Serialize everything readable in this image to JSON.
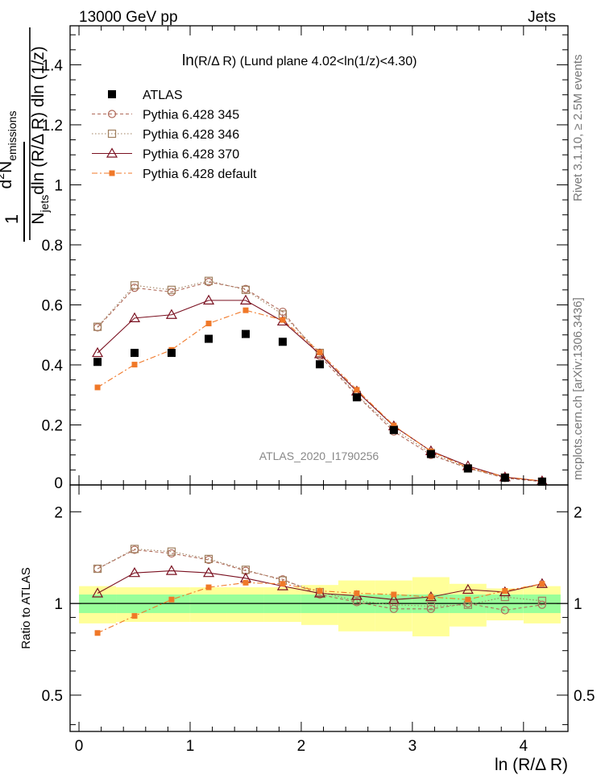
{
  "header": {
    "left": "13000 GeV pp",
    "right": "Jets"
  },
  "side_text": {
    "rivet": "Rivet 3.1.10, ≥ 2.5M events",
    "mcplots": "mcplots.cern.ch [arXiv:1306.3436]"
  },
  "colors": {
    "atlas": "#000000",
    "p345": "#b06a5a",
    "p346": "#a08060",
    "p370": "#7a1020",
    "pdefault": "#f07828",
    "band_inner": "#99ff99",
    "band_outer": "#ffff99"
  },
  "chart_data": {
    "type": "line",
    "title_main": "ln",
    "title_detail": "(R/Δ R) (Lund plane 4.02<ln(1/z)<4.30)",
    "analysis_label": "ATLAS_2020_I1790256",
    "xlabel": "ln (R/Δ R)",
    "ylabel": "1/N_jets dln (R/Δ R) dln (1/z) · d² N_emissions",
    "ylabel_parts": {
      "one": "1",
      "d2": "d",
      "two": "2",
      "N": "N",
      "emissions": "emissions",
      "Njets_N": "N",
      "jets": "jets",
      "denominator_rest": "dln (R/Δ R) dln (1/z)"
    },
    "ratio_ylabel": "Ratio to ATLAS",
    "x": [
      0.167,
      0.5,
      0.833,
      1.167,
      1.5,
      1.833,
      2.167,
      2.5,
      2.833,
      3.167,
      3.5,
      3.833,
      4.167
    ],
    "xlim": [
      -0.08,
      4.4
    ],
    "ylim": [
      0,
      1.53
    ],
    "ratio_ylim": [
      0.38,
      2.45
    ],
    "xticks": [
      "0",
      "1",
      "2",
      "3",
      "4"
    ],
    "xtick_values": [
      0,
      1,
      2,
      3,
      4
    ],
    "yticks": [
      "0.2",
      "0.4",
      "0.6",
      "0.8",
      "1",
      "1.2",
      "1.4"
    ],
    "ytick_values": [
      0.2,
      0.4,
      0.6,
      0.8,
      1.0,
      1.2,
      1.4
    ],
    "ytick_zero": "0",
    "ratio_yticks": [
      "0.5",
      "1",
      "2"
    ],
    "ratio_ytick_values": [
      0.5,
      1,
      2
    ],
    "series": [
      {
        "name": "ATLAS",
        "style": "data",
        "values": [
          0.41,
          0.44,
          0.44,
          0.487,
          0.503,
          0.477,
          0.402,
          0.292,
          0.183,
          0.103,
          0.055,
          0.024,
          0.011
        ],
        "ratio": [
          1,
          1,
          1,
          1,
          1,
          1,
          1,
          1,
          1,
          1,
          1,
          1,
          1
        ]
      },
      {
        "name": "Pythia 6.428 345",
        "style": "circle-open-dashed",
        "values": [
          0.525,
          0.657,
          0.643,
          0.676,
          0.653,
          0.577,
          0.43,
          0.298,
          0.178,
          0.1,
          0.056,
          0.023,
          0.011
        ],
        "ratio": [
          1.3,
          1.5,
          1.46,
          1.39,
          1.28,
          1.2,
          1.07,
          1.01,
          0.96,
          0.96,
          1.0,
          0.95,
          0.99
        ]
      },
      {
        "name": "Pythia 6.428 346",
        "style": "square-open-dotted",
        "values": [
          0.527,
          0.665,
          0.65,
          0.68,
          0.65,
          0.568,
          0.44,
          0.3,
          0.186,
          0.106,
          0.055,
          0.025,
          0.011
        ],
        "ratio": [
          1.3,
          1.51,
          1.48,
          1.4,
          1.29,
          1.19,
          1.09,
          1.02,
          0.99,
          0.98,
          0.99,
          1.05,
          1.02
        ]
      },
      {
        "name": "Pythia 6.428 370",
        "style": "triangle-open-solid",
        "values": [
          0.44,
          0.556,
          0.567,
          0.615,
          0.615,
          0.545,
          0.436,
          0.312,
          0.196,
          0.113,
          0.063,
          0.026,
          0.013
        ],
        "ratio": [
          1.08,
          1.26,
          1.28,
          1.26,
          1.21,
          1.14,
          1.08,
          1.06,
          1.03,
          1.05,
          1.11,
          1.09,
          1.16
        ]
      },
      {
        "name": "Pythia 6.428 default",
        "style": "square-filled-dashdot",
        "values": [
          0.325,
          0.401,
          0.45,
          0.538,
          0.582,
          0.55,
          0.442,
          0.317,
          0.198,
          0.112,
          0.058,
          0.027,
          0.013
        ],
        "ratio": [
          0.8,
          0.91,
          1.03,
          1.13,
          1.17,
          1.16,
          1.1,
          1.08,
          1.07,
          1.05,
          1.03,
          1.1,
          1.16
        ]
      }
    ],
    "ratio_bands": {
      "inner": [
        0.07,
        0.07,
        0.07,
        0.07,
        0.07,
        0.07,
        0.07,
        0.07,
        0.07,
        0.07,
        0.07,
        0.07,
        0.07
      ],
      "outer": [
        0.14,
        0.13,
        0.13,
        0.13,
        0.13,
        0.13,
        0.15,
        0.19,
        0.19,
        0.22,
        0.16,
        0.12,
        0.14
      ]
    },
    "legend_position": "top-left"
  }
}
